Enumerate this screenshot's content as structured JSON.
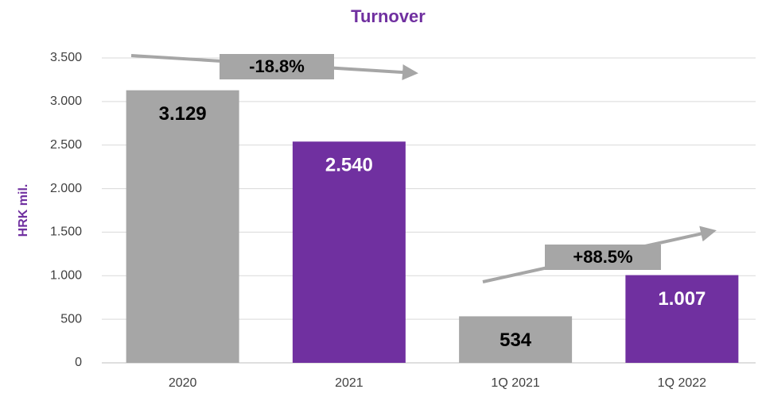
{
  "chart_data": {
    "type": "bar",
    "title": "Turnover",
    "y_label": "HRK mil.",
    "categories": [
      "2020",
      "2021",
      "1Q 2021",
      "1Q 2022"
    ],
    "values": [
      3129,
      2540,
      534,
      1007
    ],
    "value_labels": [
      "3.129",
      "2.540",
      "534",
      "1.007"
    ],
    "colors": [
      "#a6a6a6",
      "#7030a0",
      "#a6a6a6",
      "#7030a0"
    ],
    "ylim": [
      0,
      3500
    ],
    "yticks": [
      0,
      500,
      {
        "value": 1000,
        "label": "1.000"
      },
      {
        "value": 1500,
        "label": "1.500"
      },
      {
        "value": 2000,
        "label": "2.000"
      },
      {
        "value": 2500,
        "label": "2.500"
      },
      {
        "value": 3000,
        "label": "3.000"
      },
      {
        "value": 3500,
        "label": "3.500"
      }
    ],
    "grid": true,
    "annotations": [
      "-18.8%",
      "+88.5%"
    ]
  }
}
